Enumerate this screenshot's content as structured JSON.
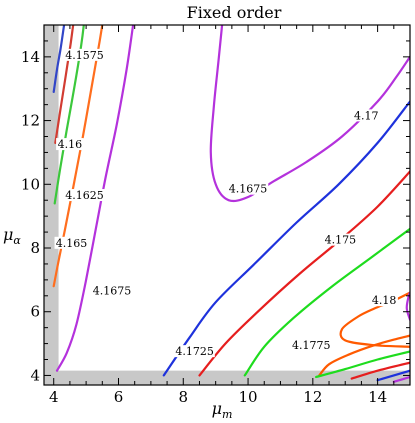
{
  "chart_data": {
    "type": "contour",
    "title": "Fixed order",
    "xlabel": "μ",
    "xlabel_sub": "m",
    "ylabel": "μ",
    "ylabel_sub": "α",
    "xlim": [
      3.7,
      15
    ],
    "ylim": [
      3.7,
      15
    ],
    "xticks": [
      4,
      6,
      8,
      10,
      12,
      14
    ],
    "yticks": [
      4,
      6,
      8,
      10,
      12,
      14
    ],
    "excluded_region_color": "#c8c8c8",
    "excluded_region": "μ_m < 4.15 or μ_α < 4.15",
    "frame": true,
    "contours": [
      {
        "level": "4.1575",
        "color": "#3246c8",
        "points": [
          [
            4.0,
            12.9
          ],
          [
            4.1,
            13.6
          ],
          [
            4.22,
            14.3
          ],
          [
            4.32,
            15.0
          ]
        ]
      },
      {
        "level": "4.16",
        "color": "#d23c32",
        "points": [
          [
            4.05,
            11.3
          ],
          [
            4.2,
            12.3
          ],
          [
            4.37,
            13.4
          ],
          [
            4.52,
            14.4
          ],
          [
            4.6,
            15.0
          ]
        ]
      },
      {
        "level": "4.1625",
        "color": "#3cc83c",
        "points": [
          [
            4.03,
            9.4
          ],
          [
            4.2,
            10.5
          ],
          [
            4.4,
            11.7
          ],
          [
            4.63,
            13.0
          ],
          [
            4.84,
            14.3
          ],
          [
            4.93,
            15.0
          ]
        ]
      },
      {
        "level": "4.165",
        "color": "#ff6e1e",
        "points": [
          [
            4.0,
            6.8
          ],
          [
            4.15,
            7.6
          ],
          [
            4.35,
            8.6
          ],
          [
            4.6,
            9.9
          ],
          [
            4.9,
            11.5
          ],
          [
            5.18,
            13.1
          ],
          [
            5.42,
            14.5
          ],
          [
            5.5,
            15.0
          ]
        ]
      },
      {
        "level": "4.1675",
        "color": "#b432dc",
        "points": [
          [
            4.1,
            4.15
          ],
          [
            4.4,
            4.7
          ],
          [
            4.7,
            5.6
          ],
          [
            5.0,
            7.0
          ],
          [
            5.3,
            8.6
          ],
          [
            5.6,
            10.2
          ],
          [
            5.95,
            11.9
          ],
          [
            6.25,
            13.6
          ],
          [
            6.45,
            15.0
          ]
        ]
      },
      {
        "level": "4.1675",
        "color": "#b432dc",
        "points": [
          [
            9.2,
            15.0
          ],
          [
            9.1,
            14.0
          ],
          [
            8.95,
            12.5
          ],
          [
            8.85,
            11.0
          ],
          [
            9.0,
            10.0
          ],
          [
            9.4,
            9.5
          ],
          [
            10.0,
            9.6
          ],
          [
            10.8,
            10.1
          ],
          [
            11.8,
            10.7
          ],
          [
            12.9,
            11.5
          ],
          [
            14.0,
            12.6
          ],
          [
            14.6,
            13.4
          ],
          [
            15.0,
            14.0
          ]
        ]
      },
      {
        "level": "4.17",
        "color": "#1e32dc",
        "points": [
          [
            7.4,
            4.0
          ],
          [
            8.2,
            5.2
          ],
          [
            9.0,
            6.3
          ],
          [
            10.2,
            7.5
          ],
          [
            11.5,
            8.8
          ],
          [
            12.8,
            10.0
          ],
          [
            14.0,
            11.3
          ],
          [
            15.0,
            12.6
          ]
        ]
      },
      {
        "level": "4.1725",
        "color": "#e61e1e",
        "points": [
          [
            8.5,
            4.0
          ],
          [
            9.3,
            5.0
          ],
          [
            10.3,
            6.0
          ],
          [
            11.6,
            7.2
          ],
          [
            12.9,
            8.3
          ],
          [
            14.0,
            9.3
          ],
          [
            15.0,
            10.4
          ]
        ]
      },
      {
        "level": "4.175",
        "color": "#1edc1e",
        "points": [
          [
            9.9,
            4.0
          ],
          [
            10.5,
            4.9
          ],
          [
            11.4,
            5.8
          ],
          [
            12.6,
            6.8
          ],
          [
            13.8,
            7.7
          ],
          [
            15.0,
            8.6
          ]
        ]
      },
      {
        "level": "4.1775",
        "color": "#ff5a00",
        "points": [
          [
            12.2,
            4.0
          ],
          [
            12.5,
            4.35
          ],
          [
            13.1,
            4.65
          ],
          [
            13.9,
            4.95
          ],
          [
            14.6,
            5.15
          ],
          [
            15.0,
            5.25
          ]
        ]
      },
      {
        "level": "4.1775",
        "color": "#ff5a00",
        "points": [
          [
            15.0,
            6.6
          ],
          [
            14.5,
            6.35
          ],
          [
            13.9,
            6.1
          ],
          [
            13.4,
            5.85
          ],
          [
            12.9,
            5.45
          ],
          [
            13.0,
            5.1
          ],
          [
            13.9,
            4.95
          ],
          [
            15.0,
            4.9
          ]
        ]
      },
      {
        "level": "4.18",
        "color": "#b432dc",
        "points": [
          [
            15.0,
            5.75
          ],
          [
            14.9,
            6.1
          ],
          [
            14.95,
            6.45
          ],
          [
            15.0,
            6.6
          ]
        ]
      },
      {
        "level": "",
        "color": "#1edc1e",
        "points": [
          [
            12.1,
            3.95
          ],
          [
            13.0,
            4.2
          ],
          [
            14.0,
            4.5
          ],
          [
            15.0,
            4.75
          ]
        ]
      },
      {
        "level": "",
        "color": "#e61e1e",
        "points": [
          [
            13.2,
            3.9
          ],
          [
            14.0,
            4.15
          ],
          [
            15.0,
            4.4
          ]
        ]
      },
      {
        "level": "",
        "color": "#1e32dc",
        "points": [
          [
            14.0,
            3.85
          ],
          [
            14.5,
            4.0
          ],
          [
            15.0,
            4.15
          ]
        ]
      },
      {
        "level": "",
        "color": "#b432dc",
        "points": [
          [
            14.5,
            3.8
          ],
          [
            15.0,
            3.95
          ]
        ]
      }
    ],
    "labels": [
      {
        "text": "4.1575",
        "x": 4.95,
        "y": 14.0
      },
      {
        "text": "4.16",
        "x": 4.5,
        "y": 11.2
      },
      {
        "text": "4.1625",
        "x": 4.95,
        "y": 9.6
      },
      {
        "text": "4.165",
        "x": 4.55,
        "y": 8.1
      },
      {
        "text": "4.1675",
        "x": 5.8,
        "y": 6.6
      },
      {
        "text": "4.1675",
        "x": 10.0,
        "y": 9.8
      },
      {
        "text": "4.17",
        "x": 13.65,
        "y": 12.1
      },
      {
        "text": "4.1725",
        "x": 8.35,
        "y": 4.7
      },
      {
        "text": "4.175",
        "x": 12.85,
        "y": 8.2
      },
      {
        "text": "4.1775",
        "x": 11.95,
        "y": 4.9
      },
      {
        "text": "4.18",
        "x": 14.2,
        "y": 6.3
      }
    ]
  }
}
